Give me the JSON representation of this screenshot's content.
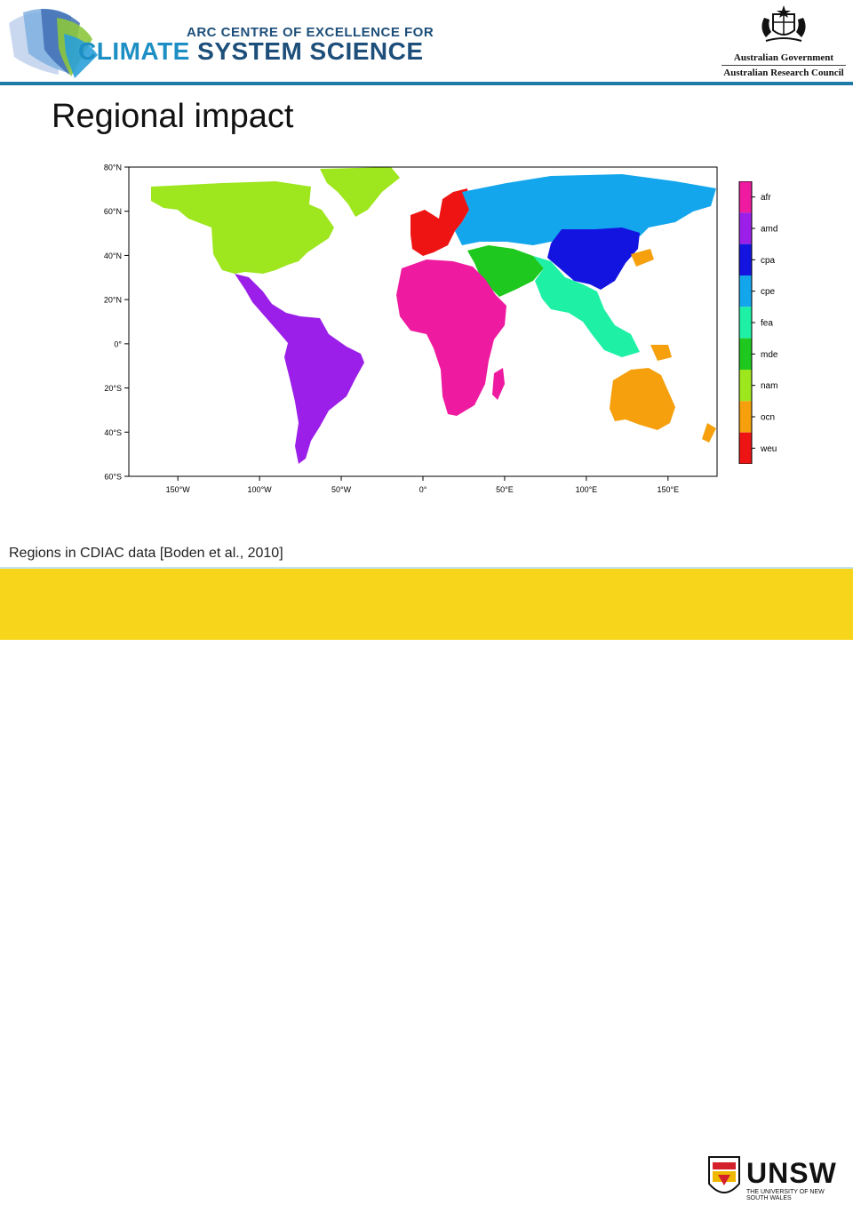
{
  "header": {
    "arc_line1": "ARC CENTRE OF EXCELLENCE FOR",
    "arc_line2a": "CLIMATE",
    "arc_line2b": " SYSTEM SCIENCE",
    "gov_line1": "Australian Government",
    "gov_line2": "Australian Research Council"
  },
  "slide": {
    "title": "Regional impact",
    "caption": "Regions in CDIAC data [Boden et al., 2010]"
  },
  "footer": {
    "unsw": "UNSW",
    "unsw_sub": "THE UNIVERSITY OF NEW SOUTH WALES"
  },
  "map": {
    "lat_labels": [
      "80°N",
      "60°N",
      "40°N",
      "20°N",
      "0°",
      "20°S",
      "40°S",
      "60°S"
    ],
    "lat_values": [
      80,
      60,
      40,
      20,
      0,
      -20,
      -40,
      -60
    ],
    "lon_labels": [
      "150°W",
      "100°W",
      "50°W",
      "0°",
      "50°E",
      "100°E",
      "150°E"
    ],
    "lon_values": [
      -150,
      -100,
      -50,
      0,
      50,
      100,
      150
    ],
    "lon_range": [
      -180,
      180
    ],
    "lat_range": [
      -60,
      80
    ],
    "regions": [
      {
        "code": "afr",
        "color": "#ee1ba0"
      },
      {
        "code": "amd",
        "color": "#9b1fe8"
      },
      {
        "code": "cpa",
        "color": "#1414e0"
      },
      {
        "code": "cpe",
        "color": "#14a6ec"
      },
      {
        "code": "fea",
        "color": "#1ef0a6"
      },
      {
        "code": "mde",
        "color": "#1ec81e"
      },
      {
        "code": "nam",
        "color": "#9ee61e"
      },
      {
        "code": "ocn",
        "color": "#f5a00c"
      },
      {
        "code": "weu",
        "color": "#ee1414"
      }
    ]
  }
}
